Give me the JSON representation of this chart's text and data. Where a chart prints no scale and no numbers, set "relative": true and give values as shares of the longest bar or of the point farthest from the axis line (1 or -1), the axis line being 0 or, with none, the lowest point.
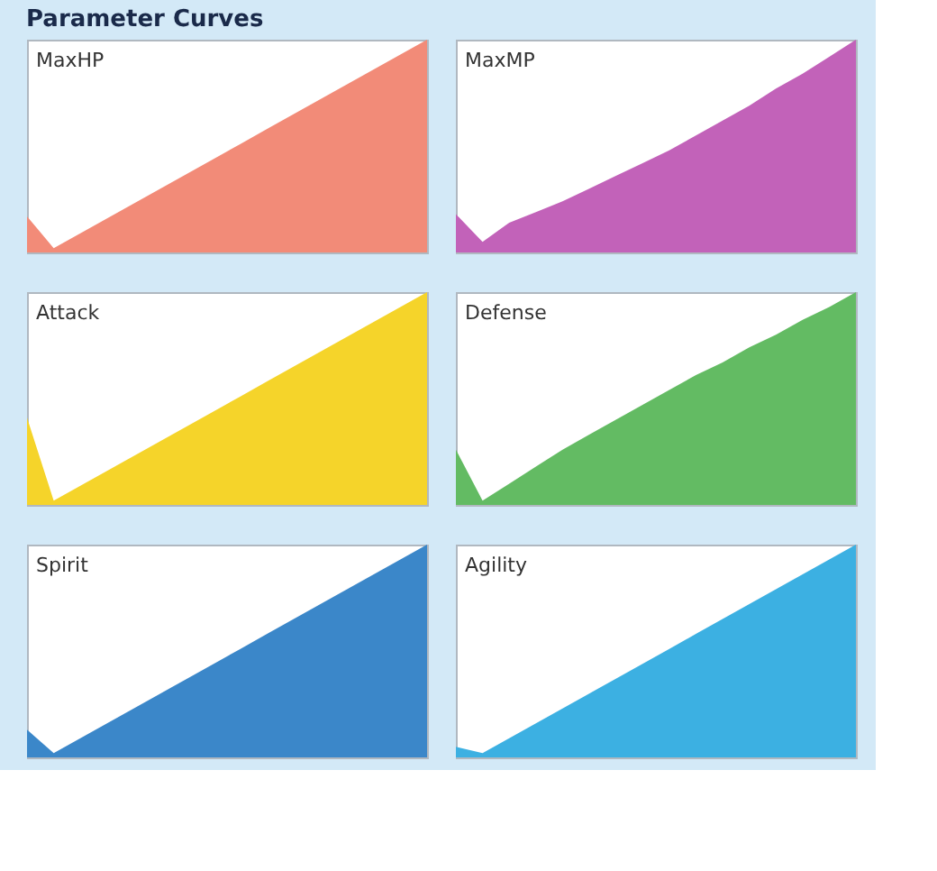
{
  "chart_data": [
    {
      "type": "other",
      "title": "Parameter Curves"
    },
    {
      "type": "area",
      "title": "MaxHP",
      "relative": true,
      "color": "#f28b78",
      "categories": [
        null,
        null,
        null,
        null,
        null,
        null,
        null,
        null,
        null,
        null,
        null,
        null,
        null,
        null,
        null,
        null
      ],
      "values": [
        0.17,
        0.02,
        0.09,
        0.16,
        0.23,
        0.3,
        0.37,
        0.44,
        0.51,
        0.58,
        0.65,
        0.72,
        0.79,
        0.86,
        0.93,
        1.0
      ]
    },
    {
      "type": "area",
      "title": "MaxMP",
      "relative": true,
      "color": "#c262b9",
      "categories": [
        null,
        null,
        null,
        null,
        null,
        null,
        null,
        null,
        null,
        null,
        null,
        null,
        null,
        null,
        null,
        null
      ],
      "values": [
        0.18,
        0.05,
        0.14,
        0.19,
        0.24,
        0.3,
        0.36,
        0.42,
        0.48,
        0.55,
        0.62,
        0.69,
        0.77,
        0.84,
        0.92,
        1.0
      ]
    },
    {
      "type": "area",
      "title": "Attack",
      "relative": true,
      "color": "#f5d42a",
      "categories": [
        null,
        null,
        null,
        null,
        null,
        null,
        null,
        null,
        null,
        null,
        null,
        null,
        null,
        null,
        null,
        null
      ],
      "values": [
        0.41,
        0.02,
        0.09,
        0.16,
        0.23,
        0.3,
        0.37,
        0.44,
        0.51,
        0.58,
        0.65,
        0.72,
        0.79,
        0.86,
        0.93,
        1.0
      ]
    },
    {
      "type": "area",
      "title": "Defense",
      "relative": true,
      "color": "#63bb63",
      "categories": [
        null,
        null,
        null,
        null,
        null,
        null,
        null,
        null,
        null,
        null,
        null,
        null,
        null,
        null,
        null,
        null
      ],
      "values": [
        0.26,
        0.02,
        0.1,
        0.18,
        0.26,
        0.33,
        0.4,
        0.47,
        0.54,
        0.61,
        0.67,
        0.74,
        0.8,
        0.87,
        0.93,
        1.0
      ]
    },
    {
      "type": "area",
      "title": "Spirit",
      "relative": true,
      "color": "#3b87c9",
      "categories": [
        null,
        null,
        null,
        null,
        null,
        null,
        null,
        null,
        null,
        null,
        null,
        null,
        null,
        null,
        null,
        null
      ],
      "values": [
        0.13,
        0.02,
        0.09,
        0.16,
        0.23,
        0.3,
        0.37,
        0.44,
        0.51,
        0.58,
        0.65,
        0.72,
        0.79,
        0.86,
        0.93,
        1.0
      ]
    },
    {
      "type": "area",
      "title": "Agility",
      "relative": true,
      "color": "#3cb0e2",
      "categories": [
        null,
        null,
        null,
        null,
        null,
        null,
        null,
        null,
        null,
        null,
        null,
        null,
        null,
        null,
        null,
        null
      ],
      "values": [
        0.05,
        0.02,
        0.09,
        0.16,
        0.23,
        0.3,
        0.37,
        0.44,
        0.51,
        0.58,
        0.65,
        0.72,
        0.79,
        0.86,
        0.93,
        1.0
      ]
    }
  ]
}
